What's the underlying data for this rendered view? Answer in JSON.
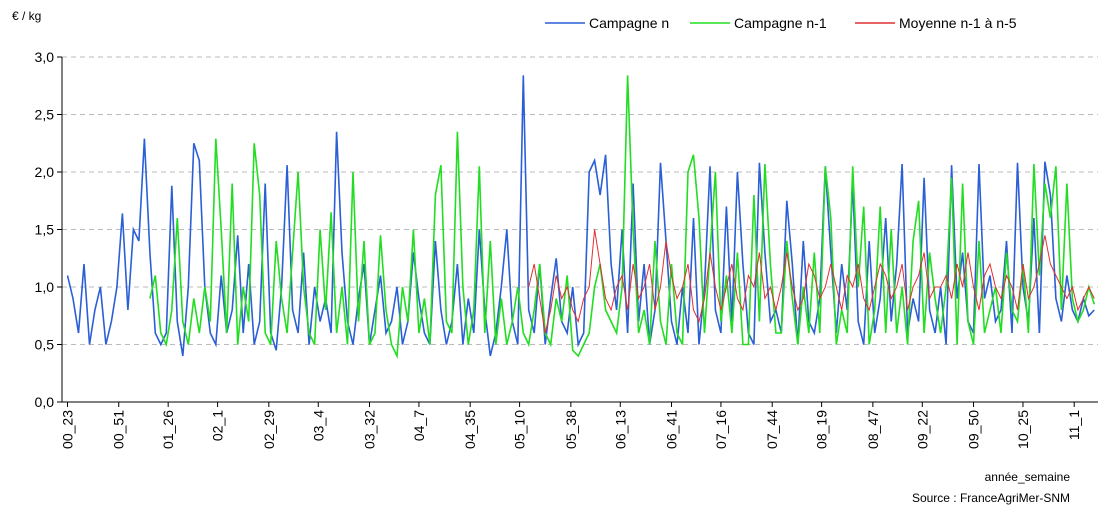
{
  "chart_data": {
    "type": "line",
    "y_label": "€ / kg",
    "x_label": "année_semaine",
    "source": "Source : FranceAgriMer-SNM",
    "legend": "top-right",
    "grid": true,
    "ylim": [
      0,
      3
    ],
    "yticks": [
      {
        "value": 0,
        "label": "0,0"
      },
      {
        "value": 0.5,
        "label": "0,5"
      },
      {
        "value": 1,
        "label": "1,0"
      },
      {
        "value": 1.5,
        "label": "1,5"
      },
      {
        "value": 2,
        "label": "2,0"
      },
      {
        "value": 2.5,
        "label": "2,5"
      },
      {
        "value": 3,
        "label": "3,0"
      }
    ],
    "xlim": [
      -3,
      563
    ],
    "xticks": [
      {
        "value": 0,
        "label": "00_23"
      },
      {
        "value": 28,
        "label": "00_51"
      },
      {
        "value": 55,
        "label": "01_26"
      },
      {
        "value": 82,
        "label": "02_1"
      },
      {
        "value": 110,
        "label": "02_29"
      },
      {
        "value": 137,
        "label": "03_4"
      },
      {
        "value": 165,
        "label": "03_32"
      },
      {
        "value": 192,
        "label": "04_7"
      },
      {
        "value": 220,
        "label": "04_35"
      },
      {
        "value": 247,
        "label": "05_10"
      },
      {
        "value": 275,
        "label": "05_38"
      },
      {
        "value": 302,
        "label": "06_13"
      },
      {
        "value": 330,
        "label": "06_41"
      },
      {
        "value": 357,
        "label": "07_16"
      },
      {
        "value": 385,
        "label": "07_44"
      },
      {
        "value": 412,
        "label": "08_19"
      },
      {
        "value": 440,
        "label": "08_47"
      },
      {
        "value": 467,
        "label": "09_22"
      },
      {
        "value": 495,
        "label": "09_50"
      },
      {
        "value": 522,
        "label": "10_25"
      },
      {
        "value": 550,
        "label": "11_1"
      }
    ],
    "x": [
      0,
      3,
      6,
      9,
      12,
      15,
      18,
      21,
      24,
      27,
      30,
      33,
      36,
      39,
      42,
      45,
      48,
      51,
      54,
      57,
      60,
      63,
      66,
      69,
      72,
      75,
      78,
      81,
      84,
      87,
      90,
      93,
      96,
      99,
      102,
      105,
      108,
      111,
      114,
      117,
      120,
      123,
      126,
      129,
      132,
      135,
      138,
      141,
      144,
      147,
      150,
      153,
      156,
      159,
      162,
      165,
      168,
      171,
      174,
      177,
      180,
      183,
      186,
      189,
      192,
      195,
      198,
      201,
      204,
      207,
      210,
      213,
      216,
      219,
      222,
      225,
      228,
      231,
      234,
      237,
      240,
      243,
      246,
      249,
      252,
      255,
      258,
      261,
      264,
      267,
      270,
      273,
      276,
      279,
      282,
      285,
      288,
      291,
      294,
      297,
      300,
      303,
      306,
      309,
      312,
      315,
      318,
      321,
      324,
      327,
      330,
      333,
      336,
      339,
      342,
      345,
      348,
      351,
      354,
      357,
      360,
      363,
      366,
      369,
      372,
      375,
      378,
      381,
      384,
      387,
      390,
      393,
      396,
      399,
      402,
      405,
      408,
      411,
      414,
      417,
      420,
      423,
      426,
      429,
      432,
      435,
      438,
      441,
      444,
      447,
      450,
      453,
      456,
      459,
      462,
      465,
      468,
      471,
      474,
      477,
      480,
      483,
      486,
      489,
      492,
      495,
      498,
      501,
      504,
      507,
      510,
      513,
      516,
      519,
      522,
      525,
      528,
      531,
      534,
      537,
      540,
      543,
      546,
      549,
      552,
      555,
      558,
      561
    ],
    "series": [
      {
        "name": "Campagne n",
        "color": "#2a5fd6",
        "values": [
          1.1,
          0.9,
          0.6,
          1.2,
          0.5,
          0.8,
          1.0,
          0.5,
          0.7,
          1.0,
          1.64,
          0.8,
          1.5,
          1.4,
          2.29,
          1.3,
          0.6,
          0.5,
          0.6,
          1.88,
          0.7,
          0.4,
          1.0,
          2.25,
          2.1,
          1.0,
          0.6,
          0.5,
          1.1,
          0.6,
          0.8,
          1.45,
          0.6,
          1.2,
          0.5,
          0.7,
          1.9,
          0.6,
          0.45,
          1.0,
          2.06,
          0.8,
          0.6,
          1.3,
          0.5,
          1.0,
          0.7,
          0.9,
          0.6,
          2.35,
          1.3,
          0.7,
          0.5,
          0.9,
          1.2,
          0.5,
          0.8,
          1.1,
          0.6,
          0.7,
          1.0,
          0.5,
          0.7,
          1.3,
          0.9,
          0.6,
          0.5,
          1.4,
          0.8,
          0.5,
          0.7,
          1.2,
          0.5,
          0.9,
          0.6,
          1.5,
          0.8,
          0.4,
          0.6,
          1.0,
          1.5,
          0.7,
          0.5,
          2.84,
          0.8,
          0.6,
          1.2,
          0.5,
          0.9,
          1.25,
          0.7,
          0.6,
          1.0,
          0.5,
          0.6,
          2.0,
          2.1,
          1.8,
          2.15,
          1.2,
          0.8,
          1.5,
          0.6,
          1.9,
          0.7,
          1.2,
          0.5,
          0.8,
          2.08,
          1.4,
          0.7,
          0.5,
          1.0,
          0.6,
          1.6,
          0.5,
          1.0,
          2.05,
          0.8,
          0.6,
          1.7,
          0.7,
          2.0,
          1.2,
          0.6,
          0.5,
          2.08,
          1.3,
          0.7,
          0.8,
          0.6,
          1.75,
          1.2,
          0.5,
          1.4,
          0.7,
          0.6,
          0.9,
          2.05,
          1.3,
          0.6,
          1.2,
          0.8,
          1.9,
          0.7,
          0.5,
          1.4,
          0.6,
          0.9,
          1.6,
          0.7,
          1.2,
          2.07,
          0.6,
          0.9,
          0.7,
          1.95,
          0.8,
          0.6,
          1.0,
          0.5,
          2.06,
          0.9,
          1.3,
          0.7,
          0.6,
          2.07,
          0.9,
          1.1,
          0.7,
          0.8,
          1.4,
          0.6,
          2.08,
          1.0,
          0.7,
          1.6,
          0.6,
          2.09,
          1.8,
          0.9,
          0.7,
          1.1,
          0.8,
          0.7,
          0.9,
          0.75,
          0.8
        ]
      },
      {
        "name": "Campagne n-1",
        "color": "#22dd22",
        "values": [
          null,
          null,
          null,
          null,
          null,
          null,
          null,
          null,
          null,
          null,
          null,
          null,
          null,
          null,
          null,
          0.9,
          1.1,
          0.6,
          0.5,
          0.8,
          1.6,
          0.7,
          0.5,
          0.9,
          0.6,
          1.0,
          0.7,
          2.29,
          1.5,
          0.6,
          1.9,
          0.5,
          1.0,
          0.7,
          2.25,
          1.8,
          0.6,
          0.5,
          1.4,
          0.9,
          0.6,
          1.3,
          2.0,
          1.0,
          0.6,
          0.5,
          1.5,
          0.8,
          1.65,
          0.6,
          1.0,
          0.5,
          2.0,
          0.7,
          1.4,
          0.5,
          0.6,
          1.45,
          0.8,
          0.5,
          0.4,
          1.0,
          0.7,
          1.5,
          0.6,
          0.9,
          0.5,
          1.8,
          2.06,
          0.7,
          0.6,
          2.35,
          1.0,
          0.5,
          0.8,
          2.05,
          0.6,
          1.4,
          0.5,
          0.9,
          0.5,
          0.7,
          1.0,
          0.6,
          0.5,
          0.8,
          1.2,
          0.6,
          0.5,
          0.9,
          0.7,
          1.1,
          0.45,
          0.4,
          0.5,
          0.6,
          1.0,
          1.2,
          0.8,
          0.7,
          0.6,
          1.0,
          2.84,
          1.5,
          0.6,
          0.8,
          0.5,
          1.4,
          0.7,
          0.5,
          1.2,
          0.6,
          0.5,
          2.0,
          2.15,
          1.6,
          0.6,
          1.3,
          2.0,
          0.7,
          1.1,
          0.6,
          1.3,
          0.5,
          0.5,
          1.8,
          0.7,
          2.07,
          1.2,
          0.6,
          0.6,
          1.4,
          0.9,
          0.5,
          1.0,
          0.6,
          1.3,
          0.6,
          2.05,
          1.6,
          0.5,
          0.8,
          0.6,
          2.05,
          1.0,
          1.7,
          0.5,
          0.8,
          1.7,
          0.6,
          1.5,
          0.6,
          1.0,
          0.5,
          1.4,
          1.75,
          0.6,
          1.3,
          0.9,
          0.6,
          1.0,
          1.95,
          0.5,
          1.9,
          0.7,
          0.5,
          1.4,
          0.6,
          0.8,
          1.0,
          0.6,
          1.3,
          0.8,
          0.7,
          1.2,
          0.6,
          2.07,
          1.1,
          1.9,
          1.6,
          2.05,
          0.8,
          1.9,
          0.9,
          0.7,
          0.8,
          1.0,
          0.85
        ]
      },
      {
        "name": "Moyenne n-1 à n-5",
        "color": "#e03030",
        "values": [
          null,
          null,
          null,
          null,
          null,
          null,
          null,
          null,
          null,
          null,
          null,
          null,
          null,
          null,
          null,
          null,
          null,
          null,
          null,
          null,
          null,
          null,
          null,
          null,
          null,
          null,
          null,
          null,
          null,
          null,
          null,
          null,
          null,
          null,
          null,
          null,
          null,
          null,
          null,
          null,
          null,
          null,
          null,
          null,
          null,
          null,
          null,
          null,
          null,
          null,
          null,
          null,
          null,
          null,
          null,
          null,
          null,
          null,
          null,
          null,
          null,
          null,
          null,
          null,
          null,
          null,
          null,
          null,
          null,
          null,
          null,
          null,
          null,
          null,
          null,
          null,
          null,
          null,
          null,
          null,
          null,
          null,
          null,
          null,
          1.0,
          1.2,
          0.9,
          0.6,
          0.8,
          1.1,
          0.9,
          1.0,
          0.8,
          0.7,
          0.9,
          1.0,
          1.5,
          1.2,
          0.9,
          0.8,
          1.0,
          1.1,
          0.8,
          1.2,
          0.9,
          1.0,
          1.2,
          0.8,
          1.0,
          1.4,
          1.1,
          0.9,
          1.0,
          1.2,
          0.8,
          0.7,
          0.9,
          1.3,
          1.0,
          0.8,
          1.0,
          1.2,
          0.9,
          0.8,
          1.1,
          1.0,
          1.3,
          0.9,
          1.0,
          0.8,
          1.0,
          1.3,
          1.0,
          0.8,
          0.9,
          1.2,
          1.1,
          0.9,
          1.0,
          1.2,
          1.0,
          0.8,
          1.1,
          1.0,
          1.2,
          0.9,
          0.8,
          1.0,
          1.2,
          1.1,
          0.9,
          1.0,
          1.2,
          0.8,
          1.0,
          1.1,
          1.3,
          0.9,
          1.0,
          1.0,
          1.1,
          0.9,
          1.2,
          1.0,
          1.3,
          1.0,
          0.8,
          1.1,
          1.2,
          1.0,
          0.9,
          1.1,
          1.0,
          0.8,
          1.2,
          0.9,
          1.0,
          1.2,
          1.45,
          1.2,
          1.1,
          1.0,
          0.9,
          1.0,
          0.8,
          0.9,
          1.0,
          0.9
        ]
      }
    ]
  }
}
